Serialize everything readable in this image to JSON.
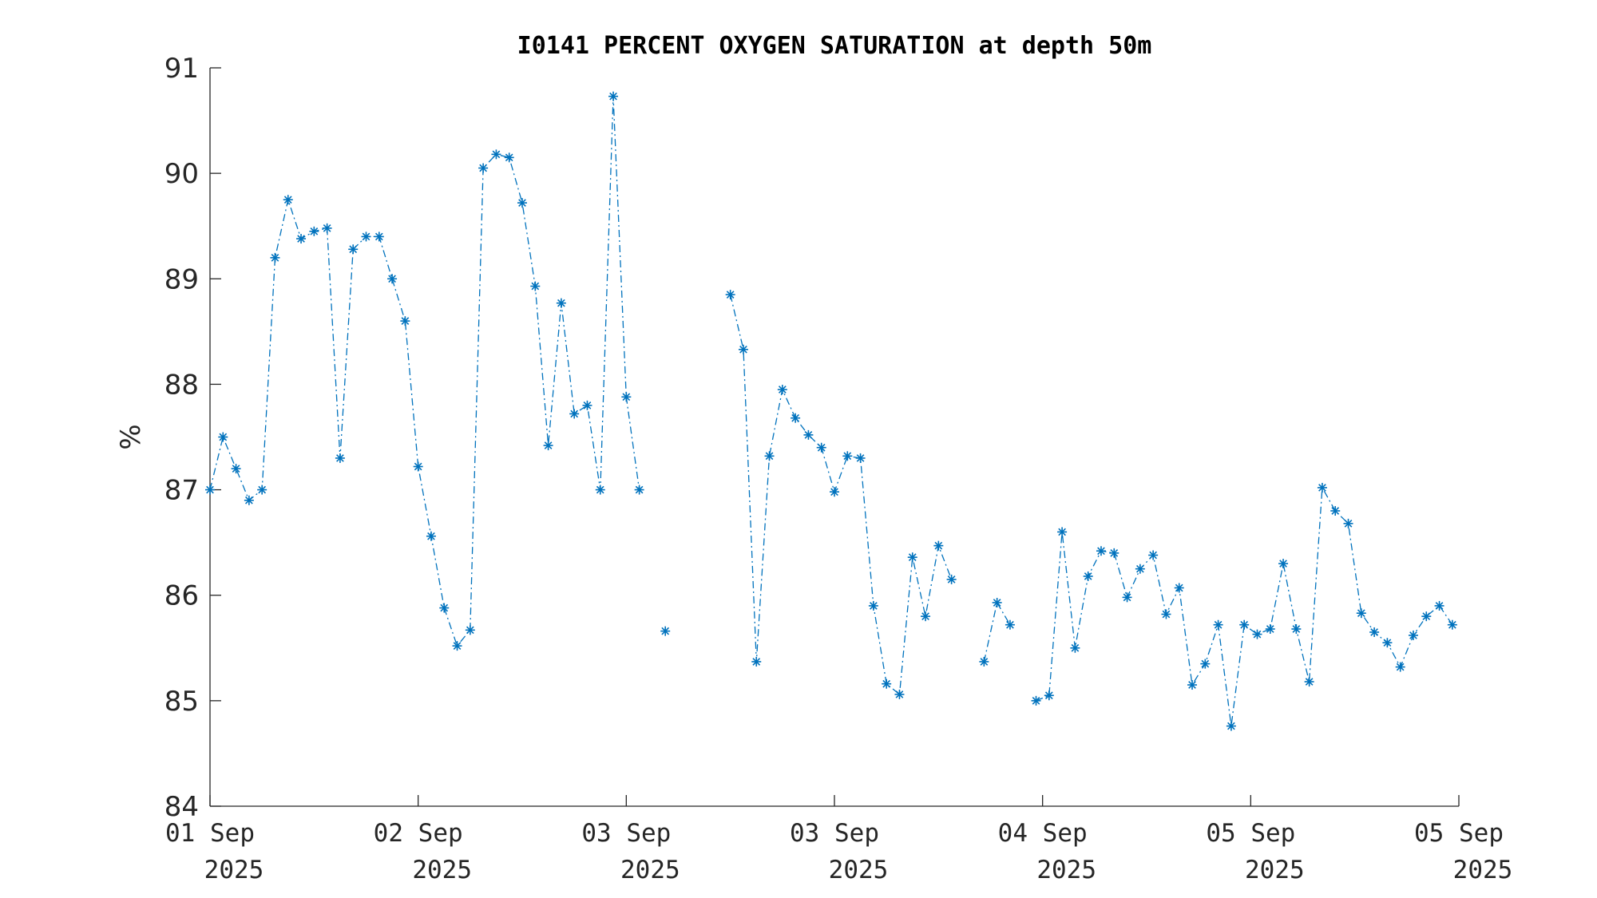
{
  "chart_data": {
    "type": "line",
    "title": "I0141 PERCENT OXYGEN SATURATION at depth 50m",
    "xlabel": "",
    "ylabel": "%",
    "ylim": [
      84,
      91
    ],
    "yticks": [
      84,
      85,
      86,
      87,
      88,
      89,
      90,
      91
    ],
    "xlim_hours": [
      0,
      96
    ],
    "xticks": [
      {
        "hours": 0,
        "line1": "01 Sep",
        "line2": "2025"
      },
      {
        "hours": 16,
        "line1": "02 Sep",
        "line2": "2025"
      },
      {
        "hours": 32,
        "line1": "03 Sep",
        "line2": "2025"
      },
      {
        "hours": 48,
        "line1": "03 Sep",
        "line2": "2025"
      },
      {
        "hours": 64,
        "line1": "04 Sep",
        "line2": "2025"
      },
      {
        "hours": 80,
        "line1": "05 Sep",
        "line2": "2025"
      },
      {
        "hours": 96,
        "line1": "05 Sep",
        "line2": "2025"
      }
    ],
    "grid": false,
    "line_style": "dash-dot",
    "marker": "asterisk",
    "color": "#0072BD",
    "series": [
      {
        "segments": [
          [
            87.0,
            87.5,
            87.2,
            86.9,
            87.0,
            89.2,
            89.75,
            89.38,
            89.45,
            89.48,
            87.3,
            89.28,
            89.4,
            89.4,
            89.0,
            88.6,
            87.22,
            86.56,
            85.88,
            85.52,
            85.67,
            90.05,
            90.18,
            90.15,
            89.72,
            88.93,
            87.42,
            88.77,
            87.72,
            87.8,
            87.0,
            90.73,
            87.88,
            87.0,
            null,
            85.66
          ],
          [
            88.85,
            88.33,
            85.37,
            87.32,
            87.95,
            87.68,
            87.52,
            87.4,
            86.98,
            87.32,
            87.3,
            85.9,
            85.16,
            85.06,
            86.36,
            85.8,
            86.47,
            86.15
          ],
          [
            85.37,
            85.93,
            85.72,
            null,
            85.0,
            85.05,
            86.6,
            85.5,
            86.18,
            86.42,
            86.4,
            85.98,
            86.25,
            86.38,
            85.82,
            86.07,
            85.15,
            85.35,
            85.72,
            84.76,
            85.72,
            85.63,
            85.68,
            86.3,
            85.68,
            85.18,
            87.02,
            86.8,
            86.68,
            85.83,
            85.65,
            85.55,
            85.32,
            85.62,
            85.8,
            85.9,
            85.72
          ]
        ],
        "segment_start_hours": [
          0,
          40,
          59.5
        ],
        "step_hours": 1
      }
    ]
  }
}
